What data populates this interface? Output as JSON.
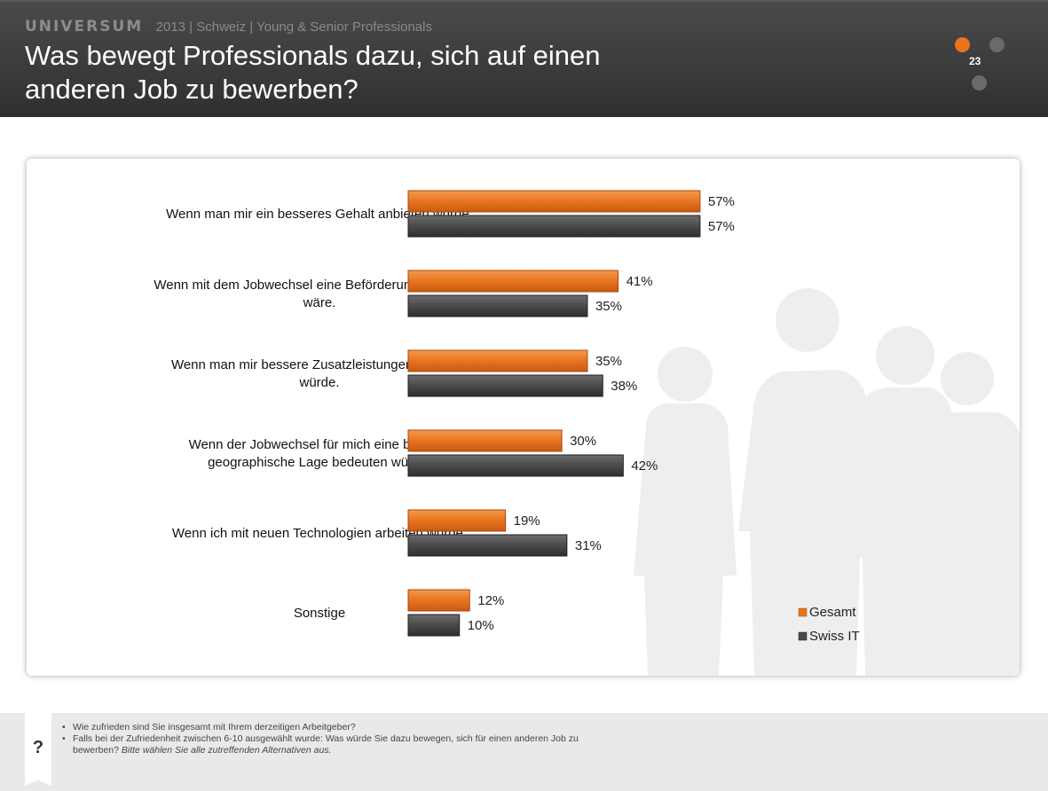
{
  "header": {
    "brand": "UNIVERSUM",
    "subline": "2013 | Schweiz | Young & Senior Professionals",
    "title_line1": "Was bewegt Professionals dazu, sich auf einen",
    "title_line2": "anderen Job zu bewerben?",
    "page_number": "23"
  },
  "colors": {
    "gesamt": "#e8741e",
    "swiss_it": "#4a4a4a",
    "accent": "#e8741e"
  },
  "chart_data": {
    "type": "bar",
    "orientation": "horizontal",
    "categories": [
      [
        "Wenn man mir ein besseres Gehalt anbieten würde."
      ],
      [
        "Wenn mit dem Jobwechsel eine Beförderung verbunden",
        "wäre."
      ],
      [
        "Wenn man mir bessere Zusatzleistungen anbieten",
        "würde."
      ],
      [
        "Wenn der Jobwechsel für mich eine bessere",
        "geographische Lage bedeuten würde."
      ],
      [
        "Wenn ich mit neuen Technologien arbeiten würde."
      ],
      [
        "Sonstige"
      ]
    ],
    "series": [
      {
        "name": "Gesamt",
        "values": [
          57,
          41,
          35,
          30,
          19,
          12
        ],
        "color": "#e8741e"
      },
      {
        "name": "Swiss IT",
        "values": [
          57,
          35,
          38,
          42,
          31,
          10
        ],
        "color": "#4a4a4a"
      }
    ],
    "value_suffix": "%",
    "xlim": [
      0,
      100
    ],
    "legend": "bottom-right",
    "grid": false
  },
  "footer": {
    "question_mark": "?",
    "note1": "Wie zufrieden sind Sie insgesamt mit Ihrem derzeitigen Arbeitgeber?",
    "note2": "Falls bei der Zufriedenheit zwischen 6-10 ausgewählt wurde: Was würde Sie dazu bewegen, sich für einen anderen Job zu",
    "note2_cont": "bewerben?",
    "note2_italic": "Bitte wählen Sie alle zutreffenden Alternativen aus.",
    "bullet": "•"
  }
}
